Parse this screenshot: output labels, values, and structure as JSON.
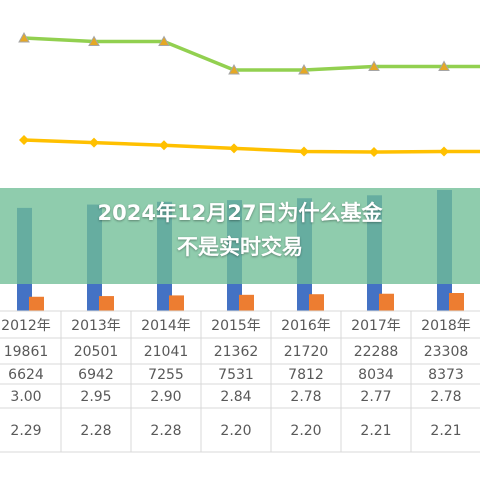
{
  "overlay": {
    "title_line1": "2024年12月27日为什么基金",
    "title_line2": "不是实时交易",
    "band_color": "#70BE96"
  },
  "chart_data": {
    "type": "bar",
    "categories": [
      "2012年",
      "2013年",
      "2014年",
      "2015年",
      "2016年",
      "2017年",
      "2018年"
    ],
    "series": [
      {
        "kind": "line",
        "color": "#92D050",
        "marker": "triangle",
        "values": [
          2.29,
          2.28,
          2.28,
          2.2,
          2.2,
          2.21,
          2.21
        ]
      },
      {
        "kind": "line",
        "color": "#FFC000",
        "marker": "diamond",
        "values": [
          3.0,
          2.95,
          2.9,
          2.84,
          2.78,
          2.77,
          2.78
        ]
      },
      {
        "kind": "bar",
        "color": "#4472C4",
        "values": [
          19861,
          20501,
          21041,
          21362,
          21720,
          22288,
          23308
        ]
      },
      {
        "kind": "bar",
        "color": "#ED7D31",
        "values": [
          6624,
          6942,
          7255,
          7531,
          7812,
          8034,
          8373
        ]
      }
    ],
    "table_rows": [
      [
        "19861",
        "20501",
        "21041",
        "21362",
        "21720",
        "22288",
        "23308"
      ],
      [
        "6624",
        "6942",
        "7255",
        "7531",
        "7812",
        "8034",
        "8373"
      ],
      [
        "3.00",
        "2.95",
        "2.90",
        "2.84",
        "2.78",
        "2.77",
        "2.78"
      ],
      [
        "2.29",
        "2.28",
        "2.28",
        "2.20",
        "2.20",
        "2.21",
        "2.21"
      ]
    ]
  }
}
